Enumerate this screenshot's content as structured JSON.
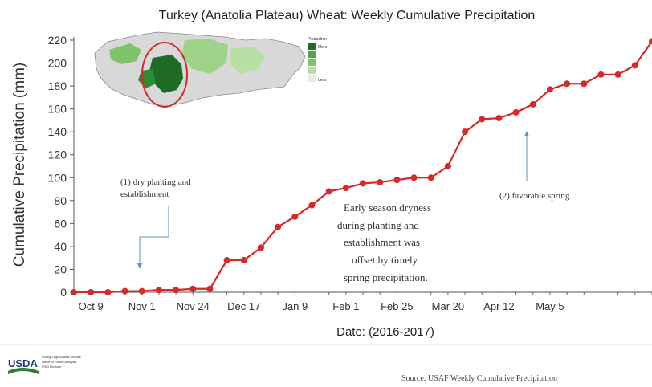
{
  "chart_data": {
    "type": "line",
    "title": "Turkey (Anatolia Plateau) Wheat: Weekly Cumulative Precipitation",
    "xlabel": "Date: (2016-2017)",
    "ylabel": "Cumulative Precipitation (mm)",
    "ylim": [
      0,
      220
    ],
    "yticks": [
      0,
      20,
      40,
      60,
      80,
      100,
      120,
      140,
      160,
      180,
      200,
      220
    ],
    "grid": false,
    "x_tick_labels": [
      "Oct 9",
      "Nov 1",
      "Nov 24",
      "Dec 17",
      "Jan 9",
      "Feb 1",
      "Feb 25",
      "Mar 20",
      "Apr 12",
      "May 5"
    ],
    "series": [
      {
        "color": "#d42a2a",
        "values": [
          0,
          0,
          0,
          1,
          1,
          2,
          2,
          3,
          3,
          28,
          28,
          39,
          57,
          66,
          76,
          88,
          91,
          95,
          96,
          98,
          100,
          100,
          110,
          140,
          151,
          152,
          157,
          164,
          177,
          182,
          182,
          190,
          190,
          198,
          219
        ]
      }
    ],
    "annotations": [
      {
        "id": "dry",
        "lines": [
          "(1) dry planting and",
          "establishment"
        ]
      },
      {
        "id": "spring",
        "lines": [
          "(2) favorable  spring"
        ]
      },
      {
        "id": "summary",
        "lines": [
          "Early season dryness",
          "during planting and",
          "establishment was",
          "offset by timely",
          "spring precipitation."
        ]
      }
    ]
  },
  "inset_map": {
    "legend_title": "Production",
    "legend_high": "More",
    "legend_low": "Less"
  },
  "footer": {
    "logo": "USDA",
    "logo_lines": [
      "Foreign Agricultural Service",
      "Office of Global Analysis",
      "IPAD Division"
    ],
    "source": "Source: USAF Weekly Cumulative Precipitation"
  }
}
